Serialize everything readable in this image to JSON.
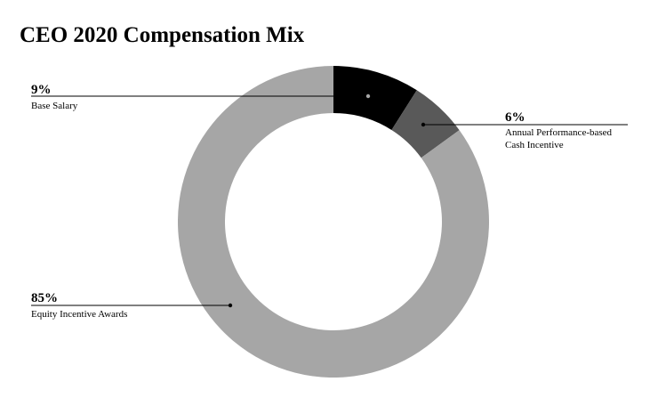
{
  "chart_data": {
    "type": "donut",
    "title": "CEO 2020 Compensation Mix",
    "categories": [
      "Base Salary",
      "Annual Performance-based Cash Incentive",
      "Equity Incentive Awards"
    ],
    "values": [
      9,
      6,
      85
    ],
    "value_labels": [
      "9%",
      "6%",
      "85%"
    ],
    "colors": [
      "#000000",
      "#595959",
      "#a6a6a6"
    ]
  }
}
